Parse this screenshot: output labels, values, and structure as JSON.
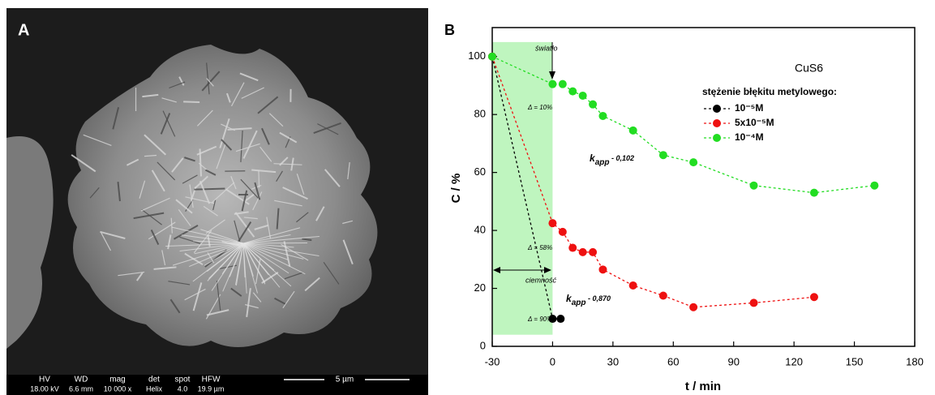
{
  "panel_a": {
    "label": "A",
    "info_headers": [
      "HV",
      "WD",
      "mag",
      "det",
      "spot",
      "HFW"
    ],
    "info_values": [
      "18.00 kV",
      "6.6 mm",
      "10 000 x",
      "Helix",
      "4.0",
      "19.9 µm"
    ],
    "scale_bar": "5 µm"
  },
  "chart_data": {
    "type": "line",
    "panel_label": "B",
    "x_label": "t / min",
    "y_label": "C / %",
    "xlim": [
      -30,
      180
    ],
    "xticks": [
      -30,
      0,
      30,
      60,
      90,
      120,
      150,
      180
    ],
    "ylim": [
      0,
      110
    ],
    "yticks": [
      0,
      20,
      40,
      60,
      80,
      100
    ],
    "legend_title": "stężenie błękitu metylowego:",
    "shaded_region": {
      "color": "#bff5bf",
      "xlim": [
        -30,
        0
      ],
      "ylim": [
        4,
        105
      ]
    },
    "series": [
      {
        "name": "10⁻⁵M",
        "color": "#000000",
        "x": [
          -30,
          0,
          4
        ],
        "values": [
          100,
          9.5,
          9.5
        ]
      },
      {
        "name": "5x10⁻⁵M",
        "color": "#ee1111",
        "x": [
          -30,
          0,
          5,
          10,
          15,
          20,
          25,
          40,
          55,
          70,
          100,
          130
        ],
        "values": [
          100,
          42.5,
          39.5,
          34,
          32.5,
          32.5,
          26.5,
          21,
          17.5,
          13.5,
          15,
          17
        ]
      },
      {
        "name": "10⁻⁴M",
        "color": "#22dd22",
        "x": [
          -30,
          0,
          5,
          10,
          15,
          20,
          25,
          40,
          55,
          70,
          100,
          130,
          160
        ],
        "values": [
          100,
          90.5,
          90.5,
          88,
          86.5,
          83.5,
          79.5,
          74.5,
          66,
          63.5,
          55.5,
          53,
          55.5
        ]
      }
    ],
    "annotations": [
      {
        "text": "CuS6"
      },
      {
        "text": "światło"
      },
      {
        "text": "ciemność"
      },
      {
        "text": "Δ = 10%"
      },
      {
        "text": "Δ = 58%"
      },
      {
        "text": "Δ = 90%"
      },
      {
        "k": "k",
        "sub": "app",
        "text": " - 0,102"
      },
      {
        "k": "k",
        "sub": "app",
        "text": " - 0,870"
      }
    ]
  }
}
